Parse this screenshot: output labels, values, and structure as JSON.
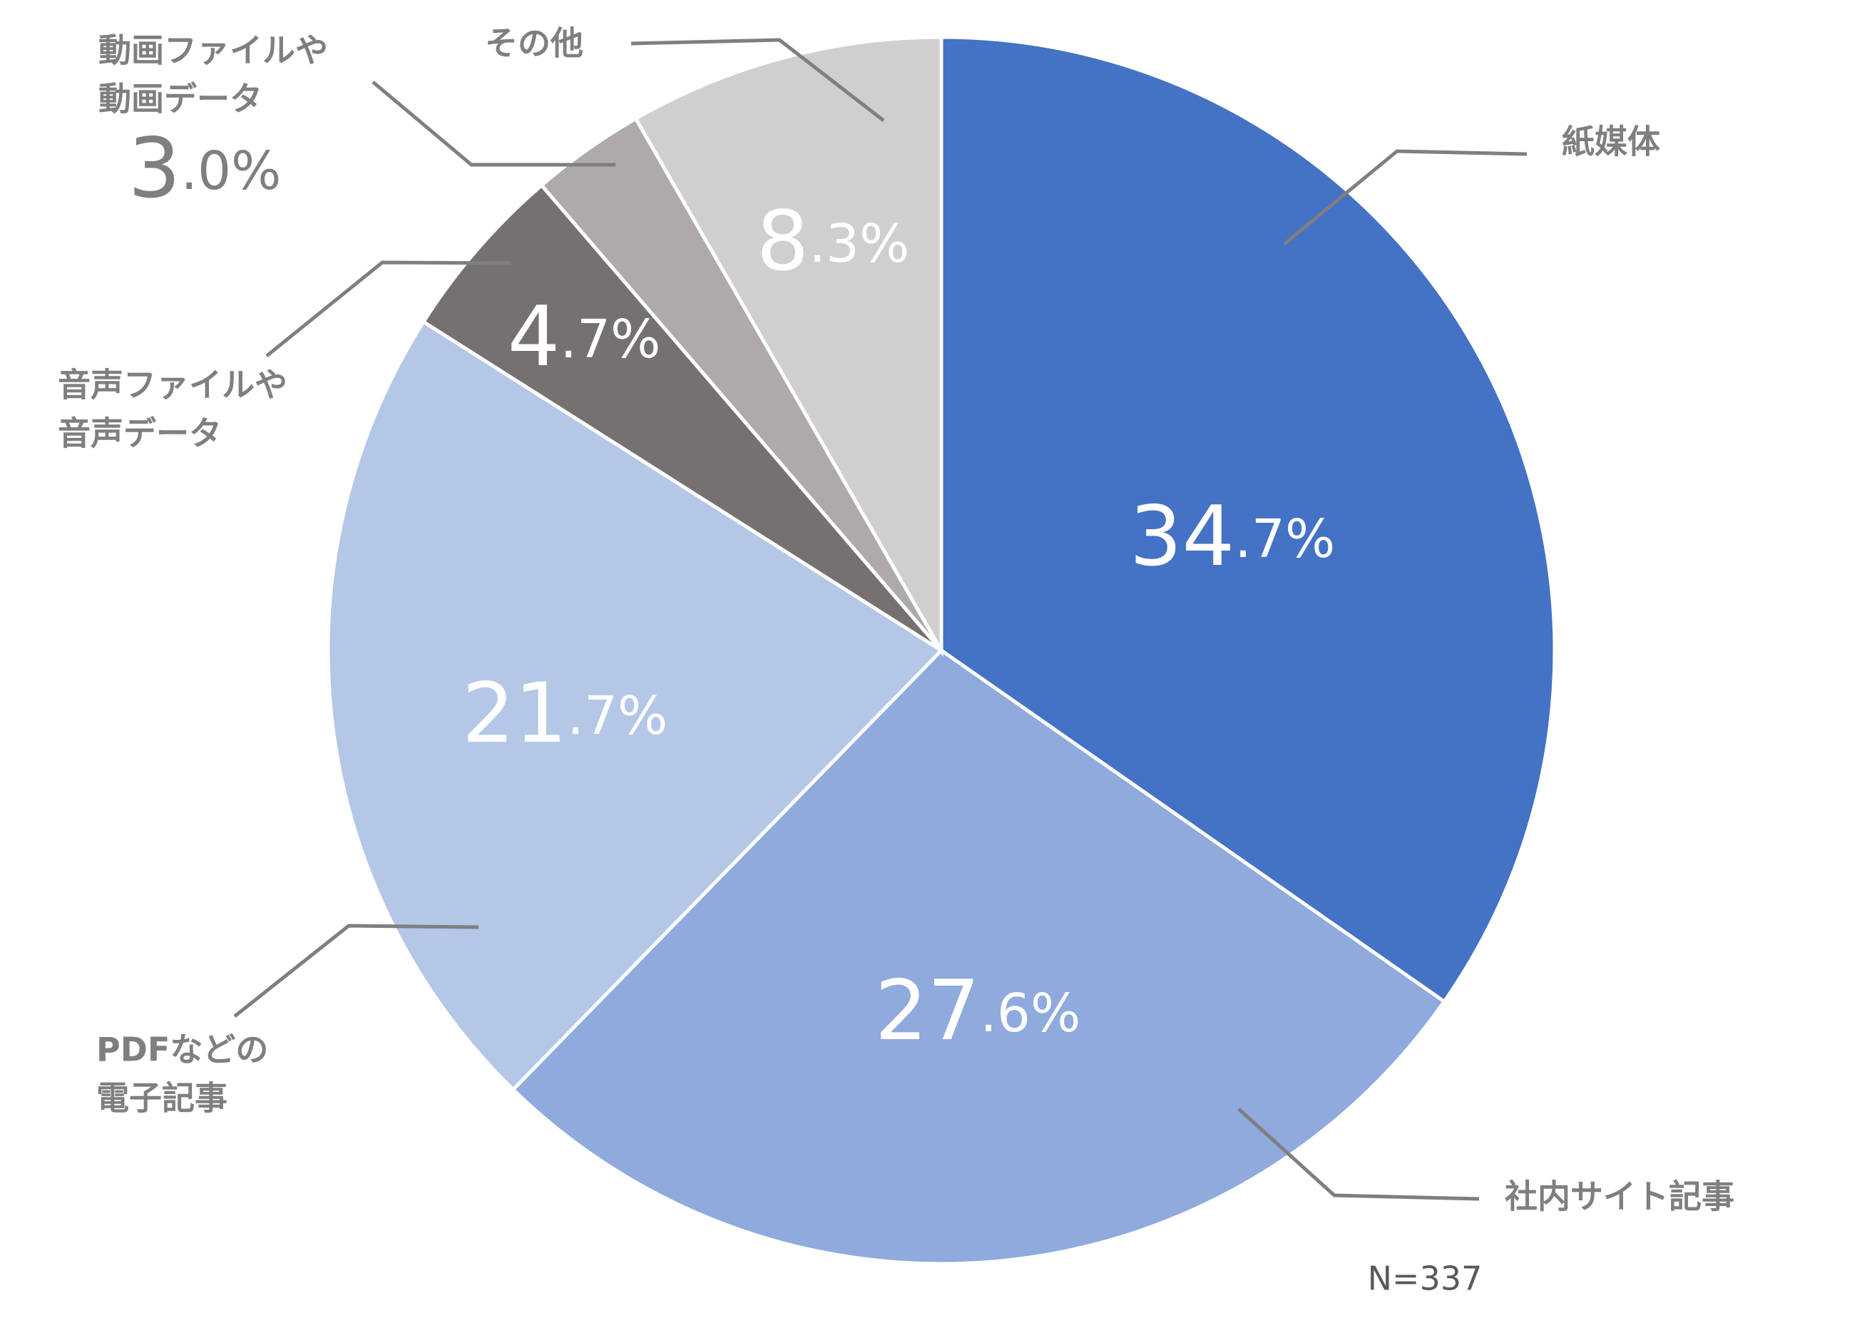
{
  "chart_data": {
    "type": "pie",
    "categories": [
      [
        "紙媒体"
      ],
      [
        "社内サイト記事"
      ],
      [
        "PDFなどの",
        "電子記事"
      ],
      [
        "音声ファイルや",
        "音声データ"
      ],
      [
        "動画ファイルや",
        "動画データ"
      ],
      [
        "その他"
      ]
    ],
    "values": [
      34.7,
      27.6,
      21.7,
      4.7,
      3.0,
      8.3
    ],
    "value_labels": [
      "34.7%",
      "27.6%",
      "21.7%",
      "4.7%",
      "3.0%",
      "8.3%"
    ],
    "colors": [
      "#4472c4",
      "#8faadc",
      "#b4c7e7",
      "#767171",
      "#aeaaaa",
      "#d0cece"
    ],
    "note": "N=337"
  }
}
